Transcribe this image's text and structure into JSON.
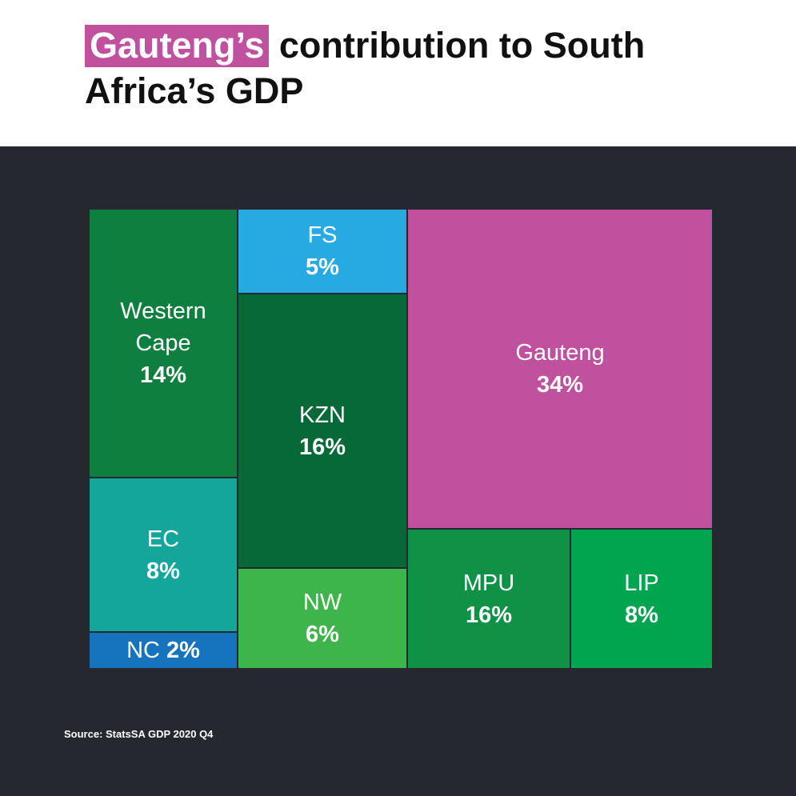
{
  "title": {
    "highlight": "Gauteng’s",
    "rest": " contribution to South Africa’s GDP"
  },
  "chart_data": {
    "type": "treemap",
    "title": "Gauteng’s contribution to South Africa’s GDP",
    "items": [
      {
        "id": "western-cape",
        "name": "Western\nCape",
        "pct_label": "14%",
        "value": 14,
        "color": "#0e7f3e"
      },
      {
        "id": "ec",
        "name": "EC",
        "pct_label": "8%",
        "value": 8,
        "color": "#14a69b"
      },
      {
        "id": "nc",
        "name": "NC",
        "pct_label": "2%",
        "value": 2,
        "color": "#1673bd"
      },
      {
        "id": "fs",
        "name": "FS",
        "pct_label": "5%",
        "value": 5,
        "color": "#27a9e1"
      },
      {
        "id": "kzn",
        "name": "KZN",
        "pct_label": "16%",
        "value": 16,
        "color": "#076838"
      },
      {
        "id": "nw",
        "name": "NW",
        "pct_label": "6%",
        "value": 6,
        "color": "#3db54a"
      },
      {
        "id": "gauteng",
        "name": "Gauteng",
        "pct_label": "34%",
        "value": 34,
        "color": "#bf519e"
      },
      {
        "id": "mpu",
        "name": "MPU",
        "pct_label": "16%",
        "value": 16,
        "color": "#0f9246"
      },
      {
        "id": "lip",
        "name": "LIP",
        "pct_label": "8%",
        "value": 8,
        "color": "#01a550"
      }
    ]
  },
  "source": "Source: StatsSA GDP 2020 Q4",
  "colors": {
    "panel": "#262830",
    "highlight": "#bf519e"
  }
}
